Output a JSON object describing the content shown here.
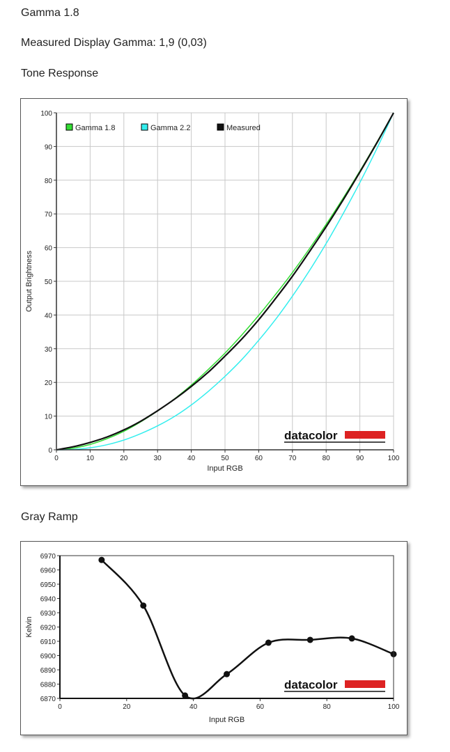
{
  "headings": {
    "gamma": "Gamma 1.8",
    "measured": "Measured Display Gamma: 1,9 (0,03)",
    "tone": "Tone Response",
    "gray": "Gray Ramp"
  },
  "logo_text": "datacolor",
  "colors": {
    "gamma18": "#33dd33",
    "gamma22": "#33eeee",
    "measured": "#111111",
    "logo_bar": "#dd2222",
    "grid": "#c8c8c8"
  },
  "chart_data": [
    {
      "type": "line",
      "title": "Tone Response",
      "xlabel": "Input RGB",
      "ylabel": "Output Brightness",
      "xlim": [
        0,
        100
      ],
      "ylim": [
        0,
        100
      ],
      "xticks": [
        0,
        10,
        20,
        30,
        40,
        50,
        60,
        70,
        80,
        90,
        100
      ],
      "yticks": [
        0,
        10,
        20,
        30,
        40,
        50,
        60,
        70,
        80,
        90,
        100
      ],
      "grid": true,
      "legend_position": "top-left",
      "x": [
        0,
        5,
        10,
        15,
        20,
        25,
        30,
        35,
        40,
        45,
        50,
        55,
        60,
        65,
        70,
        75,
        80,
        85,
        90,
        95,
        100
      ],
      "series": [
        {
          "name": "Gamma 1.8",
          "color": "#33dd33",
          "values": [
            0,
            0.5,
            1.6,
            3.3,
            5.5,
            8.3,
            11.5,
            15.1,
            19.2,
            23.8,
            28.7,
            34.1,
            39.9,
            46.1,
            52.6,
            59.6,
            66.9,
            74.6,
            82.7,
            91.2,
            100
          ]
        },
        {
          "name": "Gamma 2.2",
          "color": "#33eeee",
          "values": [
            0,
            0.1,
            0.6,
            1.5,
            2.9,
            4.8,
            7.1,
            9.9,
            13.3,
            17.3,
            21.8,
            26.8,
            32.5,
            38.7,
            45.6,
            53.1,
            61.2,
            70.0,
            79.3,
            89.3,
            100
          ]
        },
        {
          "name": "Measured",
          "color": "#111111",
          "values": [
            0,
            0.9,
            2.2,
            3.8,
            5.9,
            8.5,
            11.6,
            15.0,
            18.8,
            23.0,
            27.8,
            32.9,
            38.6,
            44.9,
            51.5,
            58.7,
            66.2,
            74.1,
            82.4,
            91.0,
            100
          ]
        }
      ]
    },
    {
      "type": "line",
      "title": "Gray Ramp",
      "xlabel": "Input RGB",
      "ylabel": "Kelvin",
      "xlim": [
        0,
        100
      ],
      "ylim": [
        6870,
        6970
      ],
      "xticks": [
        0,
        20,
        40,
        60,
        80,
        100
      ],
      "yticks": [
        6870,
        6880,
        6890,
        6900,
        6910,
        6920,
        6930,
        6940,
        6950,
        6960,
        6970
      ],
      "grid": false,
      "x": [
        12.5,
        25,
        37.5,
        50,
        62.5,
        75,
        87.5,
        100
      ],
      "series": [
        {
          "values": [
            6967,
            6935,
            6872,
            6887,
            6909,
            6911,
            6912,
            6901
          ]
        }
      ]
    }
  ]
}
